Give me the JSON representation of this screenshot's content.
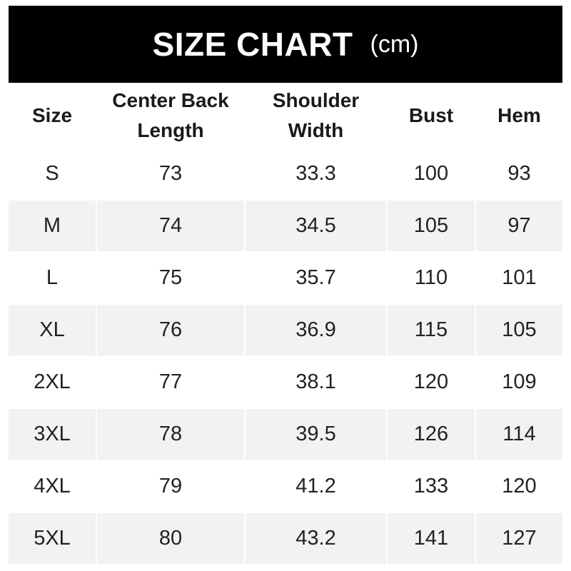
{
  "title": {
    "main": "SIZE CHART",
    "unit": "(cm)"
  },
  "chart_data": {
    "type": "table",
    "title": "SIZE CHART (cm)",
    "columns": [
      "Size",
      "Center Back Length",
      "Shoulder Width",
      "Bust",
      "Hem"
    ],
    "header_lines": [
      [
        "Size"
      ],
      [
        "Center Back",
        "Length"
      ],
      [
        "Shoulder",
        "Width"
      ],
      [
        "Bust"
      ],
      [
        "Hem"
      ]
    ],
    "rows": [
      [
        "S",
        "73",
        "33.3",
        "100",
        "93"
      ],
      [
        "M",
        "74",
        "34.5",
        "105",
        "97"
      ],
      [
        "L",
        "75",
        "35.7",
        "110",
        "101"
      ],
      [
        "XL",
        "76",
        "36.9",
        "115",
        "105"
      ],
      [
        "2XL",
        "77",
        "38.1",
        "120",
        "109"
      ],
      [
        "3XL",
        "78",
        "39.5",
        "126",
        "114"
      ],
      [
        "4XL",
        "79",
        "41.2",
        "133",
        "120"
      ],
      [
        "5XL",
        "80",
        "43.2",
        "141",
        "127"
      ]
    ]
  },
  "colors": {
    "title_bg": "#000000",
    "stripe": "#f2f2f2",
    "text": "#222222"
  }
}
